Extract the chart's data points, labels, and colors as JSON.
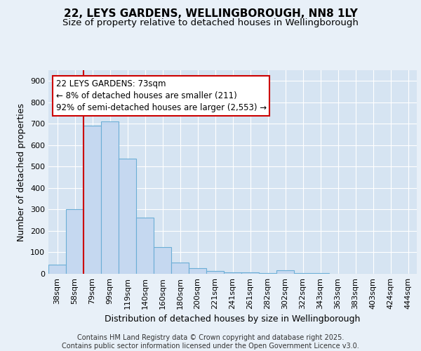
{
  "title": "22, LEYS GARDENS, WELLINGBOROUGH, NN8 1LY",
  "subtitle": "Size of property relative to detached houses in Wellingborough",
  "xlabel": "Distribution of detached houses by size in Wellingborough",
  "ylabel": "Number of detached properties",
  "categories": [
    "38sqm",
    "58sqm",
    "79sqm",
    "99sqm",
    "119sqm",
    "140sqm",
    "160sqm",
    "180sqm",
    "200sqm",
    "221sqm",
    "241sqm",
    "261sqm",
    "282sqm",
    "302sqm",
    "322sqm",
    "343sqm",
    "363sqm",
    "383sqm",
    "403sqm",
    "424sqm",
    "444sqm"
  ],
  "values": [
    42,
    302,
    691,
    710,
    536,
    262,
    123,
    53,
    27,
    14,
    8,
    5,
    4,
    16,
    2,
    2,
    1,
    1,
    1,
    1,
    1
  ],
  "bar_color": "#c5d8f0",
  "bar_edge_color": "#6baed6",
  "annotation_line_color": "#cc0000",
  "annotation_text_line1": "22 LEYS GARDENS: 73sqm",
  "annotation_text_line2": "← 8% of detached houses are smaller (211)",
  "annotation_text_line3": "92% of semi-detached houses are larger (2,553) →",
  "annotation_box_color": "#cc0000",
  "ylim": [
    0,
    950
  ],
  "yticks": [
    0,
    100,
    200,
    300,
    400,
    500,
    600,
    700,
    800,
    900
  ],
  "bg_color": "#e8f0f8",
  "plot_bg_color": "#d6e4f2",
  "grid_color": "#ffffff",
  "footer": "Contains HM Land Registry data © Crown copyright and database right 2025.\nContains public sector information licensed under the Open Government Licence v3.0.",
  "title_fontsize": 11,
  "subtitle_fontsize": 9.5,
  "xlabel_fontsize": 9,
  "ylabel_fontsize": 9,
  "tick_fontsize": 8,
  "footer_fontsize": 7,
  "annotation_fontsize": 8.5
}
